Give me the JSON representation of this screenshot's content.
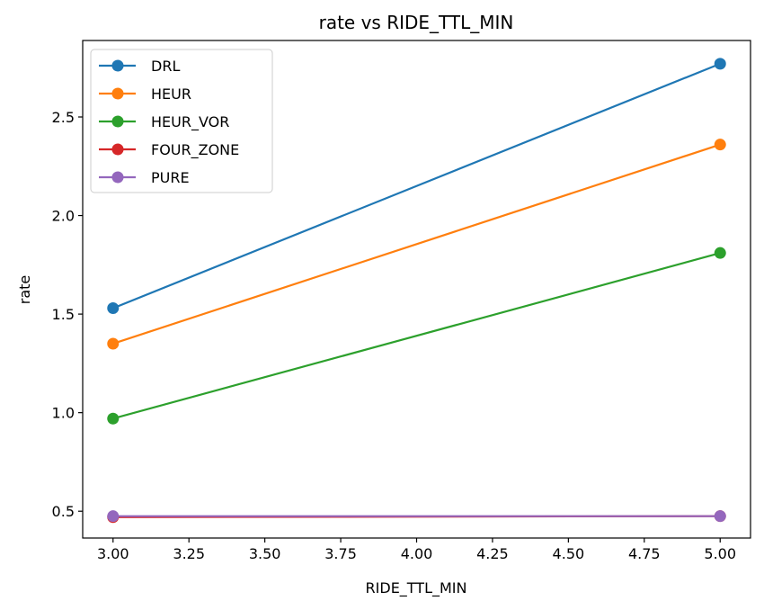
{
  "chart_data": {
    "type": "line",
    "title": "rate vs RIDE_TTL_MIN",
    "xlabel": "RIDE_TTL_MIN",
    "ylabel": "rate",
    "x": [
      3.0,
      5.0
    ],
    "xlim": [
      2.9,
      5.1
    ],
    "ylim": [
      0.364,
      2.888
    ],
    "xticks": [
      "3.00",
      "3.25",
      "3.50",
      "3.75",
      "4.00",
      "4.25",
      "4.50",
      "4.75",
      "5.00"
    ],
    "yticks": [
      "0.5",
      "1.0",
      "1.5",
      "2.0",
      "2.5"
    ],
    "grid": false,
    "legend_position": "upper-left",
    "series": [
      {
        "name": "DRL",
        "values": [
          1.53,
          2.77
        ],
        "color": "#1f77b4"
      },
      {
        "name": "HEUR",
        "values": [
          1.35,
          2.36
        ],
        "color": "#ff7f0e"
      },
      {
        "name": "HEUR_VOR",
        "values": [
          0.97,
          1.81
        ],
        "color": "#2ca02c"
      },
      {
        "name": "FOUR_ZONE",
        "values": [
          0.47,
          0.475
        ],
        "color": "#d62728"
      },
      {
        "name": "PURE",
        "values": [
          0.475,
          0.475
        ],
        "color": "#9467bd"
      }
    ]
  }
}
